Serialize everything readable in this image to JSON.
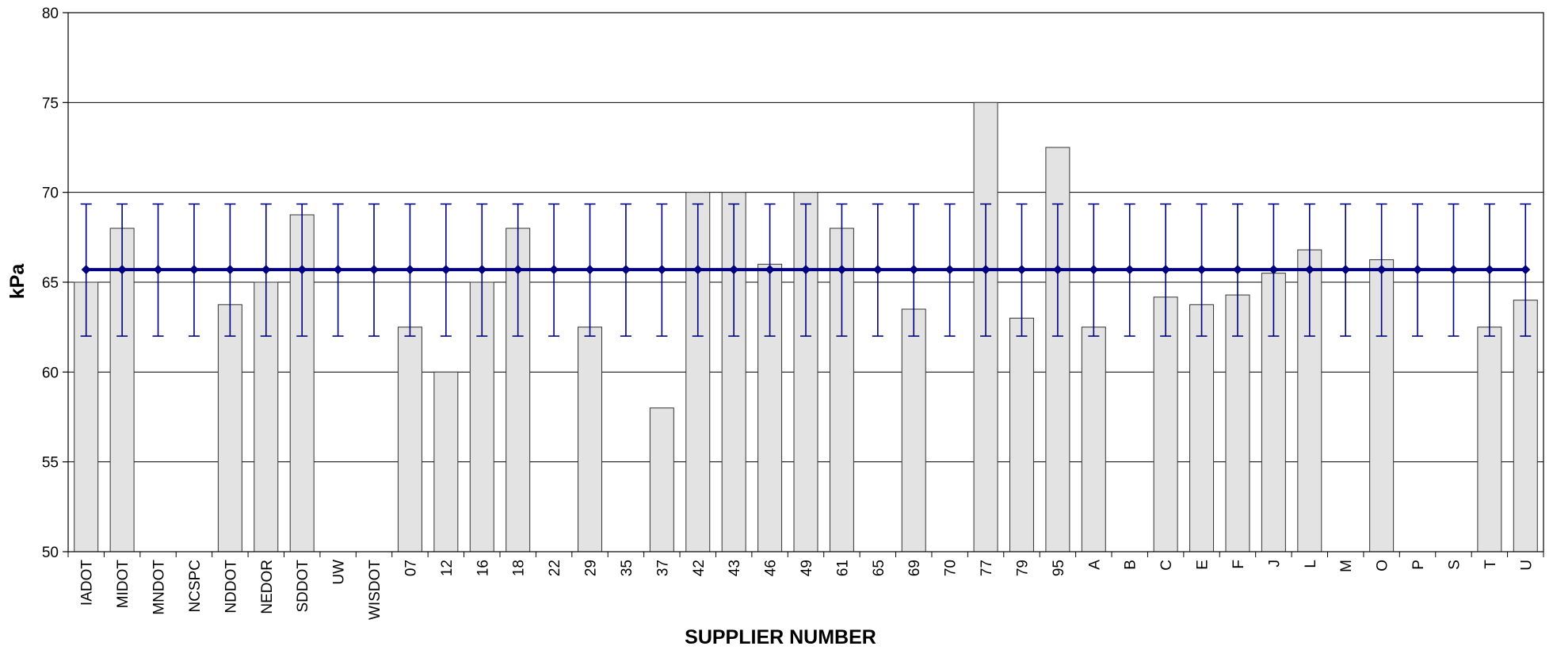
{
  "chart_data": {
    "type": "bar",
    "title": "",
    "xlabel": "SUPPLIER NUMBER",
    "ylabel": "kPa",
    "ylim": [
      50,
      80
    ],
    "yticks": [
      50,
      55,
      60,
      65,
      70,
      75,
      80
    ],
    "grid": true,
    "categories": [
      "IADOT",
      "MIDOT",
      "MNDOT",
      "NCSPC",
      "NDDOT",
      "NEDOR",
      "SDDOT",
      "UW",
      "WISDOT",
      "07",
      "12",
      "16",
      "18",
      "22",
      "29",
      "35",
      "37",
      "42",
      "43",
      "46",
      "49",
      "61",
      "65",
      "69",
      "70",
      "77",
      "79",
      "95",
      "A",
      "B",
      "C",
      "E",
      "F",
      "J",
      "L",
      "M",
      "O",
      "P",
      "S",
      "T",
      "U"
    ],
    "series": [
      {
        "type": "bar",
        "values": [
          65.0,
          68.0,
          null,
          null,
          63.75,
          65.0,
          68.75,
          null,
          null,
          62.5,
          60.0,
          65.0,
          68.0,
          null,
          62.5,
          null,
          58.0,
          70.0,
          70.0,
          66.0,
          70.0,
          68.0,
          null,
          63.5,
          null,
          75.0,
          63.0,
          72.5,
          62.5,
          null,
          64.17,
          63.75,
          64.29,
          65.5,
          66.8,
          null,
          66.25,
          null,
          null,
          62.5,
          64.0
        ]
      },
      {
        "type": "line",
        "values": [
          65.7,
          65.7,
          65.7,
          65.7,
          65.7,
          65.7,
          65.7,
          65.7,
          65.7,
          65.7,
          65.7,
          65.7,
          65.7,
          65.7,
          65.7,
          65.7,
          65.7,
          65.7,
          65.7,
          65.7,
          65.7,
          65.7,
          65.7,
          65.7,
          65.7,
          65.7,
          65.7,
          65.7,
          65.7,
          65.7,
          65.7,
          65.7,
          65.7,
          65.7,
          65.7,
          65.7,
          65.7,
          65.7,
          65.7,
          65.7,
          65.7
        ],
        "error_low": 62.0,
        "error_high": 69.35
      }
    ],
    "colors": {
      "bar_fill": "#e3e3e3",
      "bar_stroke": "#333333",
      "line": "#000080",
      "grid": "#000000"
    }
  }
}
